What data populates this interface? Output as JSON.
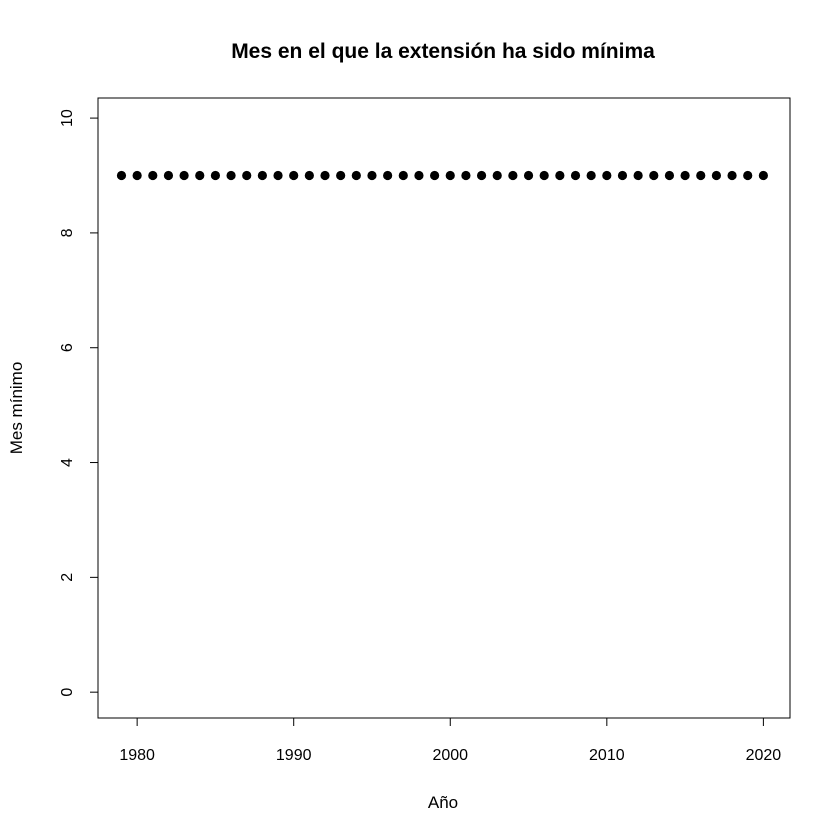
{
  "chart_data": {
    "type": "scatter",
    "title": "Mes en el que la extensión ha sido mínima",
    "xlabel": "Año",
    "ylabel": "Mes mínimo",
    "xlim": [
      1977.5,
      2021.7
    ],
    "ylim": [
      -0.45,
      10.35
    ],
    "xticks": [
      1980,
      1990,
      2000,
      2010,
      2020
    ],
    "yticks": [
      0,
      2,
      4,
      6,
      8,
      10
    ],
    "grid": false,
    "legend": "none",
    "marker_color": "#000000",
    "x": [
      1979,
      1980,
      1981,
      1982,
      1983,
      1984,
      1985,
      1986,
      1987,
      1988,
      1989,
      1990,
      1991,
      1992,
      1993,
      1994,
      1995,
      1996,
      1997,
      1998,
      1999,
      2000,
      2001,
      2002,
      2003,
      2004,
      2005,
      2006,
      2007,
      2008,
      2009,
      2010,
      2011,
      2012,
      2013,
      2014,
      2015,
      2016,
      2017,
      2018,
      2019,
      2020
    ],
    "y": [
      9,
      9,
      9,
      9,
      9,
      9,
      9,
      9,
      9,
      9,
      9,
      9,
      9,
      9,
      9,
      9,
      9,
      9,
      9,
      9,
      9,
      9,
      9,
      9,
      9,
      9,
      9,
      9,
      9,
      9,
      9,
      9,
      9,
      9,
      9,
      9,
      9,
      9,
      9,
      9,
      9,
      9
    ]
  }
}
